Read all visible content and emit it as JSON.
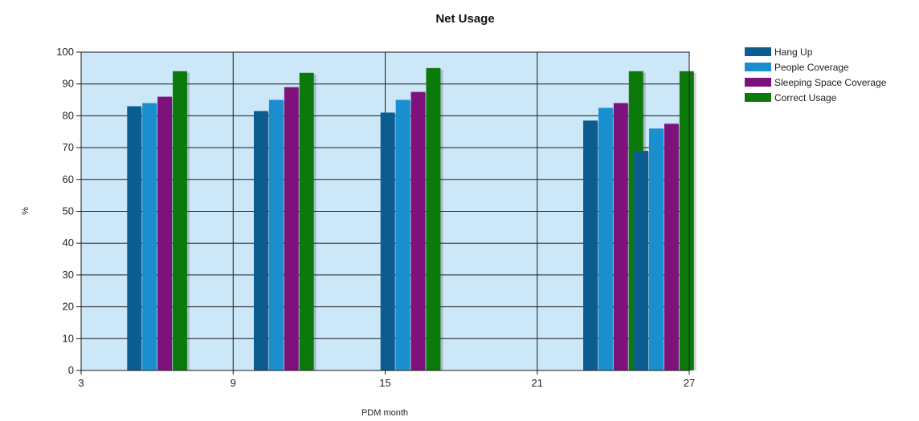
{
  "chart_data": {
    "type": "bar",
    "title": "Net Usage",
    "xlabel": "PDM month",
    "ylabel": "%",
    "x": [
      6,
      11,
      16,
      24,
      26
    ],
    "xlim": [
      3,
      27
    ],
    "xticks": [
      3,
      9,
      15,
      21,
      27
    ],
    "ylim": [
      0,
      100
    ],
    "yticks": [
      0,
      10,
      20,
      30,
      40,
      50,
      60,
      70,
      80,
      90,
      100
    ],
    "grid": true,
    "legend_position": "top-right",
    "series": [
      {
        "name": "Hang Up",
        "color": "#0c5d8f",
        "values": [
          83,
          81.5,
          81,
          78.5,
          69
        ]
      },
      {
        "name": "People Coverage",
        "color": "#1a8fd0",
        "values": [
          84,
          85,
          85,
          82.5,
          76
        ]
      },
      {
        "name": "Sleeping Space Coverage",
        "color": "#7e127c",
        "values": [
          86,
          89,
          87.5,
          84,
          77.5
        ]
      },
      {
        "name": "Correct Usage",
        "color": "#0b7a0b",
        "values": [
          94,
          93.5,
          95,
          94,
          94
        ]
      }
    ],
    "plot_background": "#cce7f8",
    "page_background": "#ffffff"
  }
}
